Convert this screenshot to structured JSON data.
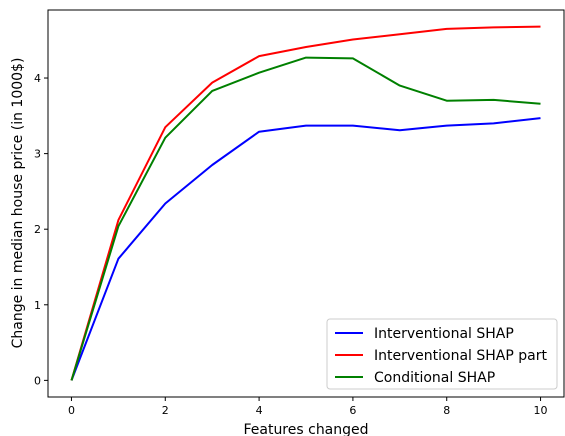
{
  "chart_data": {
    "type": "line",
    "title": "",
    "xlabel": "Features changed",
    "ylabel": "Change in median house price (in 1000$)",
    "xlim": [
      -0.5,
      10.5
    ],
    "ylim": [
      -0.22,
      4.9
    ],
    "x_ticks": [
      0,
      2,
      4,
      6,
      8,
      10
    ],
    "y_ticks": [
      0,
      1,
      2,
      3,
      4
    ],
    "grid": false,
    "legend_position": "lower-right",
    "x": [
      0,
      1,
      2,
      3,
      4,
      5,
      6,
      7,
      8,
      9,
      10
    ],
    "series": [
      {
        "name": "Interventional SHAP",
        "color": "#0000ff",
        "values": [
          0,
          1.61,
          2.34,
          2.85,
          3.29,
          3.37,
          3.37,
          3.31,
          3.37,
          3.4,
          3.47
        ]
      },
      {
        "name": "Interventional SHAP part",
        "color": "#ff0000",
        "values": [
          0,
          2.12,
          3.35,
          3.94,
          4.29,
          4.41,
          4.51,
          4.58,
          4.65,
          4.67,
          4.68
        ]
      },
      {
        "name": "Conditional SHAP",
        "color": "#008000",
        "values": [
          0,
          2.04,
          3.21,
          3.83,
          4.07,
          4.27,
          4.26,
          3.9,
          3.7,
          3.71,
          3.66
        ]
      }
    ]
  }
}
